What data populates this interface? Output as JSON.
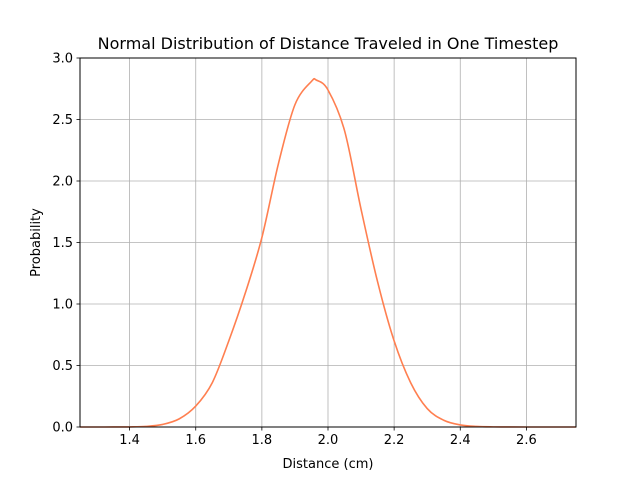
{
  "chart_data": {
    "type": "line",
    "title": "Normal Distribution of Distance Traveled in One Timestep",
    "xlabel": "Distance (cm)",
    "ylabel": "Probability",
    "xlim": [
      1.25,
      2.75
    ],
    "ylim": [
      0.0,
      3.0
    ],
    "grid": true,
    "x_ticks": [
      "1.4",
      "1.6",
      "1.8",
      "2.0",
      "2.2",
      "2.4",
      "2.6"
    ],
    "y_ticks": [
      "0.0",
      "0.5",
      "1.0",
      "1.5",
      "2.0",
      "2.5",
      "3.0"
    ],
    "line_color": "#ff7f50",
    "series": [
      {
        "x": [
          1.25,
          1.3,
          1.35,
          1.4,
          1.45,
          1.5,
          1.55,
          1.6,
          1.65,
          1.7,
          1.75,
          1.8,
          1.85,
          1.9,
          1.95,
          1.965,
          2.0,
          2.05,
          2.1,
          2.15,
          2.2,
          2.25,
          2.3,
          2.35,
          2.4,
          2.45,
          2.5,
          2.55,
          2.6,
          2.65,
          2.7,
          2.75
        ],
        "values": [
          0.0,
          0.0,
          0.0002,
          0.0008,
          0.005,
          0.021,
          0.066,
          0.17,
          0.36,
          0.7,
          1.09,
          1.54,
          2.14,
          2.62,
          2.81,
          2.82,
          2.74,
          2.41,
          1.77,
          1.18,
          0.7,
          0.36,
          0.15,
          0.055,
          0.017,
          0.0045,
          0.001,
          0.0002,
          0.0,
          0.0,
          0.0,
          0.0
        ]
      }
    ]
  }
}
